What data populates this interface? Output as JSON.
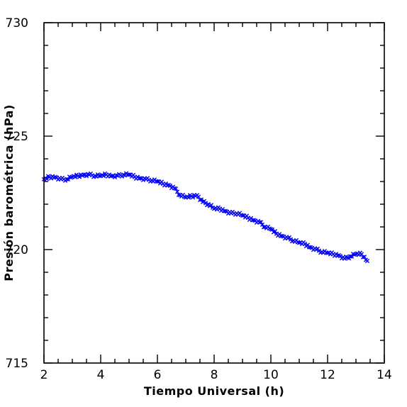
{
  "chart_data": {
    "type": "scatter",
    "title": "",
    "xlabel": "Tiempo Universal (h)",
    "ylabel": "Presión barométrica (hPa)",
    "xlim": [
      2,
      14
    ],
    "ylim": [
      715,
      730
    ],
    "x_ticks": [
      2,
      4,
      6,
      8,
      10,
      12,
      14
    ],
    "y_ticks": [
      715,
      720,
      725,
      730
    ],
    "grid": false,
    "legend": "none",
    "marker": "x",
    "colors": {
      "series": "#0000ff",
      "axes": "#000000",
      "background": "#ffffff"
    },
    "series": [
      {
        "values_x": [
          2.0,
          2.2,
          2.4,
          2.6,
          2.8,
          3.0,
          3.2,
          3.4,
          3.6,
          3.8,
          4.0,
          4.2,
          4.4,
          4.6,
          4.8,
          5.0,
          5.2,
          5.4,
          5.6,
          5.8,
          6.0,
          6.2,
          6.4,
          6.6,
          6.8,
          7.0,
          7.2,
          7.4,
          7.6,
          7.8,
          8.0,
          8.2,
          8.4,
          8.6,
          8.8,
          9.0,
          9.2,
          9.4,
          9.6,
          9.8,
          10.0,
          10.2,
          10.4,
          10.6,
          10.8,
          11.0,
          11.2,
          11.4,
          11.6,
          11.8,
          12.0,
          12.2,
          12.4,
          12.6,
          12.8,
          13.0,
          13.2,
          13.4
        ],
        "values_y": [
          723.1,
          723.2,
          723.2,
          723.1,
          723.1,
          723.2,
          723.25,
          723.3,
          723.3,
          723.25,
          723.25,
          723.3,
          723.25,
          723.25,
          723.3,
          723.3,
          723.2,
          723.15,
          723.1,
          723.05,
          723.0,
          722.9,
          722.85,
          722.7,
          722.4,
          722.3,
          722.35,
          722.4,
          722.1,
          722.0,
          721.8,
          721.8,
          721.7,
          721.6,
          721.6,
          721.5,
          721.4,
          721.3,
          721.2,
          721.0,
          720.9,
          720.7,
          720.6,
          720.5,
          720.4,
          720.3,
          720.25,
          720.1,
          720.0,
          719.9,
          719.85,
          719.8,
          719.75,
          719.6,
          719.7,
          719.8,
          719.8,
          719.5
        ]
      }
    ]
  }
}
